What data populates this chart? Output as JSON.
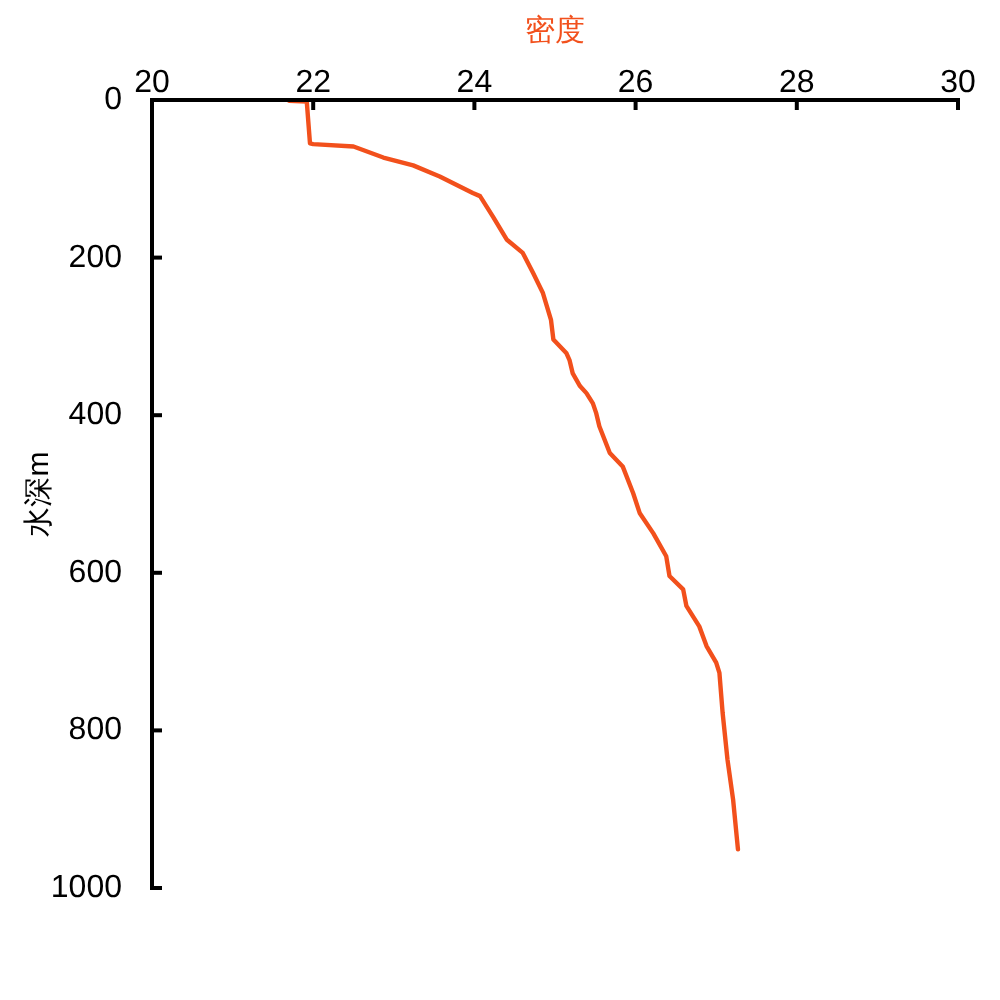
{
  "chart_data": {
    "type": "line",
    "xlabel": "密度",
    "ylabel": "水深m",
    "x": [
      21.7,
      21.92,
      21.96,
      22.0,
      22.5,
      22.87,
      23.24,
      23.57,
      23.98,
      24.07,
      24.23,
      24.4,
      24.6,
      24.73,
      24.85,
      24.95,
      24.98,
      25.14,
      25.18,
      25.22,
      25.31,
      25.39,
      25.47,
      25.51,
      25.55,
      25.68,
      25.84,
      25.97,
      26.05,
      26.22,
      26.38,
      26.42,
      26.59,
      26.63,
      26.79,
      26.88,
      27.0,
      27.04,
      27.08,
      27.14,
      27.21,
      27.27
    ],
    "values": [
      1,
      2,
      55,
      56,
      59,
      73,
      83,
      97,
      118,
      122,
      148,
      177,
      194,
      220,
      245,
      279,
      304,
      321,
      330,
      347,
      363,
      372,
      385,
      397,
      414,
      448,
      465,
      499,
      524,
      550,
      579,
      604,
      621,
      642,
      668,
      693,
      714,
      727,
      778,
      837,
      888,
      951
    ],
    "color": "#f2501c",
    "xlim": [
      20,
      30
    ],
    "xticks": [
      20,
      22,
      24,
      26,
      28,
      30
    ],
    "ylim": [
      1000,
      0
    ],
    "yticks": [
      0,
      200,
      400,
      600,
      800,
      1000
    ]
  }
}
